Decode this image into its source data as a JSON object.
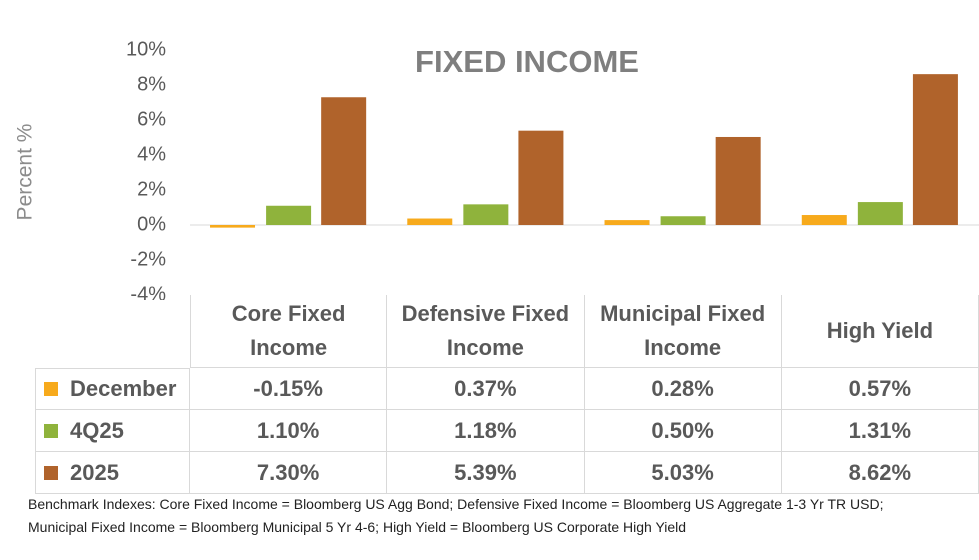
{
  "chart_data": {
    "type": "bar",
    "title": "FIXED INCOME",
    "y_label": "Percent %",
    "categories": [
      "Core Fixed Income",
      "Defensive Fixed Income",
      "Municipal Fixed Income",
      "High Yield"
    ],
    "series": [
      {
        "name": "December",
        "color": "#f7aa1c",
        "values": [
          -0.15,
          0.37,
          0.28,
          0.57
        ],
        "value_labels": [
          "-0.15%",
          "0.37%",
          "0.28%",
          "0.57%"
        ]
      },
      {
        "name": "4Q25",
        "color": "#8fb33c",
        "values": [
          1.1,
          1.18,
          0.5,
          1.31
        ],
        "value_labels": [
          "1.10%",
          "1.18%",
          "0.50%",
          "1.31%"
        ]
      },
      {
        "name": "2025",
        "color": "#b0632b",
        "values": [
          7.3,
          5.39,
          5.03,
          8.62
        ],
        "value_labels": [
          "7.30%",
          "5.39%",
          "5.03%",
          "8.62%"
        ]
      }
    ],
    "ylim": [
      -4,
      10
    ],
    "yticks": [
      {
        "value": -4,
        "label": "-4%"
      },
      {
        "value": -2,
        "label": "-2%"
      },
      {
        "value": 0,
        "label": "0%"
      },
      {
        "value": 2,
        "label": "2%"
      },
      {
        "value": 4,
        "label": "4%"
      },
      {
        "value": 6,
        "label": "6%"
      },
      {
        "value": 8,
        "label": "8%"
      },
      {
        "value": 10,
        "label": "10%"
      }
    ],
    "footnote": [
      "Benchmark Indexes: Core Fixed Income = Bloomberg US Agg Bond; Defensive Fixed Income = Bloomberg US Aggregate 1-3 Yr TR USD;",
      "Municipal Fixed Income = Bloomberg Municipal 5 Yr 4-6; High Yield = Bloomberg US Corporate High Yield"
    ]
  }
}
